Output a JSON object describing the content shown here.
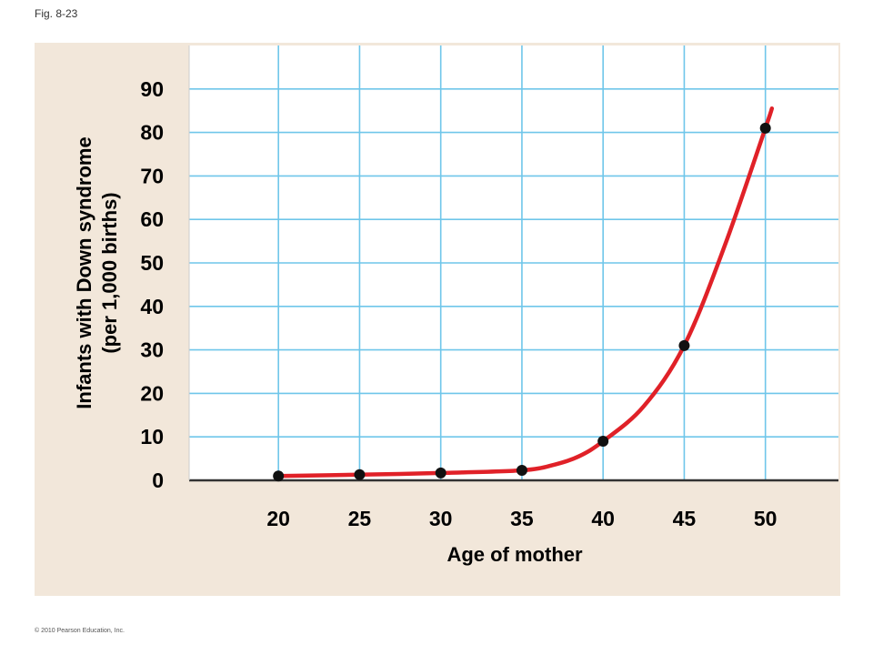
{
  "figure_label": "Fig. 8-23",
  "copyright": "© 2010 Pearson Education, Inc.",
  "colors": {
    "panel_bg": "#f2e7da",
    "plot_bg": "#ffffff",
    "grid": "#6fc6ea",
    "curve": "#e02128",
    "points": "#111111"
  },
  "chart_data": {
    "type": "line",
    "xlabel": "Age of mother",
    "ylabel_lines": [
      "Infants with Down syndrome",
      "(per 1,000 births)"
    ],
    "x_ticks": [
      20,
      25,
      30,
      35,
      40,
      45,
      50
    ],
    "y_ticks": [
      0,
      10,
      20,
      30,
      40,
      50,
      60,
      70,
      80,
      90
    ],
    "xlim": [
      14.5,
      54.5
    ],
    "ylim": [
      0,
      100
    ],
    "grid": true,
    "points": [
      {
        "x": 20,
        "y": 1
      },
      {
        "x": 25,
        "y": 1.3
      },
      {
        "x": 30,
        "y": 1.7
      },
      {
        "x": 35,
        "y": 2.3
      },
      {
        "x": 40,
        "y": 9
      },
      {
        "x": 45,
        "y": 31
      },
      {
        "x": 50,
        "y": 81
      }
    ],
    "curve": [
      {
        "x": 20,
        "y": 1
      },
      {
        "x": 25,
        "y": 1.3
      },
      {
        "x": 30,
        "y": 1.7
      },
      {
        "x": 35,
        "y": 2.3
      },
      {
        "x": 37,
        "y": 3.6
      },
      {
        "x": 38.5,
        "y": 5.5
      },
      {
        "x": 40,
        "y": 9
      },
      {
        "x": 42.5,
        "y": 17
      },
      {
        "x": 45,
        "y": 31
      },
      {
        "x": 47.5,
        "y": 54
      },
      {
        "x": 50,
        "y": 81
      },
      {
        "x": 50.4,
        "y": 85.5
      }
    ]
  }
}
